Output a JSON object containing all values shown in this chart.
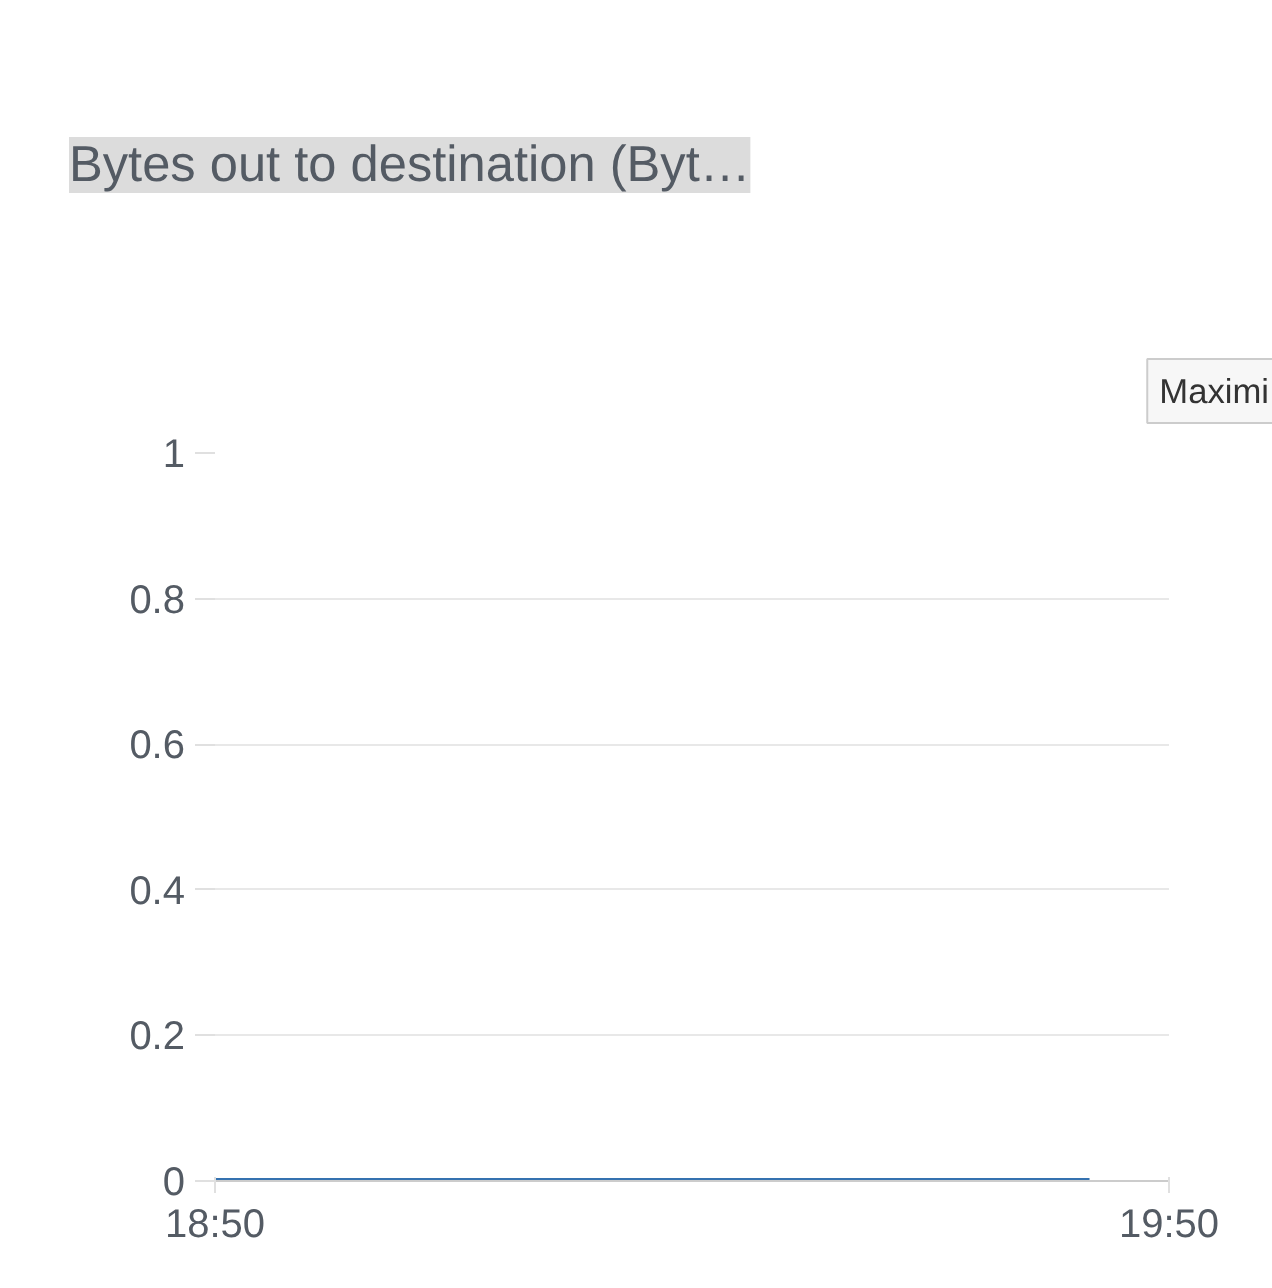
{
  "chart_data": {
    "type": "line",
    "title": "Bytes out to destination (Byt…",
    "annotations": [
      "Maximi"
    ],
    "x": [
      18.8333,
      19.75
    ],
    "series": [
      {
        "color": "#3572b0",
        "values": [
          0,
          0
        ]
      }
    ],
    "xlim": [
      18.8333,
      19.8333
    ],
    "xticks": [
      {
        "value": 18.8333,
        "label": "18:50"
      },
      {
        "value": 19.8333,
        "label": "19:50"
      }
    ],
    "ylim": [
      0,
      1
    ],
    "yticks": [
      0,
      0.2,
      0.4,
      0.6,
      0.8,
      1
    ],
    "grid": "y"
  }
}
